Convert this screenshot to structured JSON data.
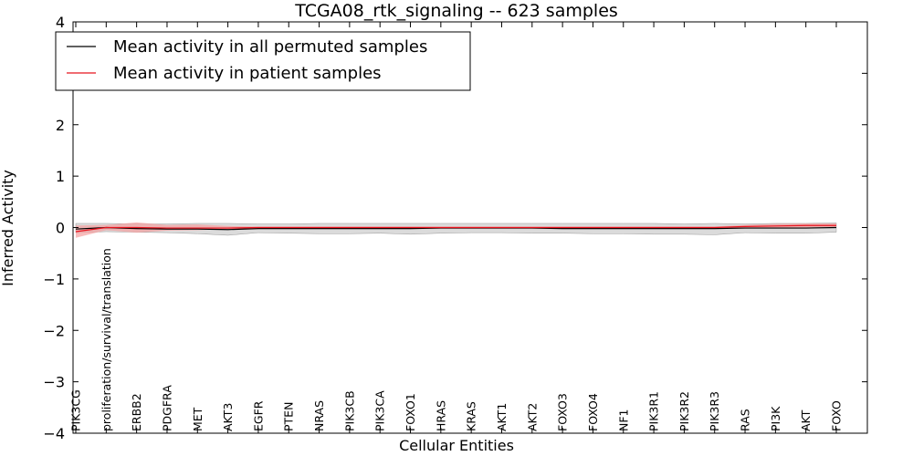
{
  "chart_data": {
    "type": "line",
    "title": "TCGA08_rtk_signaling -- 623 samples",
    "xlabel": "Cellular Entities",
    "ylabel": "Inferred Activity",
    "ylim": [
      -4,
      4
    ],
    "yticks": [
      -4,
      -3,
      -2,
      -1,
      0,
      1,
      2,
      3,
      4
    ],
    "ytick_labels": [
      "−4",
      "−3",
      "−2",
      "−1",
      "0",
      "1",
      "2",
      "3",
      "4"
    ],
    "grid": false,
    "legend_position": "top-left",
    "categories": [
      "PIK3CG",
      "proliferation/survival/translation",
      "ERBB2",
      "PDGFRA",
      "MET",
      "AKT3",
      "EGFR",
      "PTEN",
      "NRAS",
      "PIK3CB",
      "PIK3CA",
      "FOXO1",
      "HRAS",
      "KRAS",
      "AKT1",
      "AKT2",
      "FOXO3",
      "FOXO4",
      "NF1",
      "PIK3R1",
      "PIK3R2",
      "PIK3R3",
      "RAS",
      "PI3K",
      "AKT",
      "FOXO"
    ],
    "series": [
      {
        "name": "Mean activity in all permuted samples",
        "color": "#000000",
        "band_color": "#bdbdbd",
        "values": [
          -0.03,
          0.0,
          -0.02,
          -0.03,
          -0.03,
          -0.04,
          -0.02,
          -0.02,
          -0.02,
          -0.02,
          -0.02,
          -0.02,
          -0.01,
          -0.01,
          -0.01,
          -0.01,
          -0.02,
          -0.02,
          -0.02,
          -0.02,
          -0.02,
          -0.02,
          -0.01,
          -0.01,
          -0.01,
          0.0
        ],
        "lower": [
          -0.1,
          -0.08,
          -0.09,
          -0.1,
          -0.12,
          -0.15,
          -0.1,
          -0.11,
          -0.12,
          -0.12,
          -0.11,
          -0.13,
          -0.11,
          -0.1,
          -0.1,
          -0.11,
          -0.11,
          -0.12,
          -0.12,
          -0.13,
          -0.13,
          -0.14,
          -0.1,
          -0.11,
          -0.11,
          -0.09
        ],
        "upper": [
          0.08,
          0.08,
          0.07,
          0.07,
          0.08,
          0.08,
          0.07,
          0.07,
          0.08,
          0.08,
          0.08,
          0.08,
          0.08,
          0.08,
          0.08,
          0.08,
          0.08,
          0.08,
          0.08,
          0.08,
          0.07,
          0.08,
          0.07,
          0.08,
          0.08,
          0.09
        ]
      },
      {
        "name": "Mean activity in patient samples",
        "color": "#e8141e",
        "band_color": "#f5a0a0",
        "values": [
          -0.08,
          0.0,
          0.0,
          -0.01,
          -0.01,
          -0.01,
          0.0,
          0.0,
          0.0,
          0.0,
          0.0,
          0.0,
          0.0,
          0.0,
          0.0,
          0.0,
          0.0,
          0.0,
          0.0,
          0.0,
          0.0,
          0.0,
          0.02,
          0.03,
          0.04,
          0.04
        ],
        "lower": [
          -0.2,
          -0.05,
          -0.1,
          -0.06,
          -0.05,
          -0.03,
          -0.02,
          -0.02,
          -0.02,
          -0.02,
          -0.02,
          -0.02,
          -0.02,
          -0.02,
          -0.02,
          -0.02,
          -0.02,
          -0.02,
          -0.02,
          -0.02,
          -0.02,
          -0.02,
          -0.02,
          -0.01,
          0.0,
          0.01
        ],
        "upper": [
          0.04,
          0.05,
          0.1,
          0.05,
          0.06,
          0.03,
          0.02,
          0.02,
          0.02,
          0.02,
          0.02,
          0.02,
          0.02,
          0.02,
          0.02,
          0.02,
          0.02,
          0.02,
          0.02,
          0.02,
          0.02,
          0.02,
          0.05,
          0.07,
          0.08,
          0.08
        ]
      }
    ]
  }
}
